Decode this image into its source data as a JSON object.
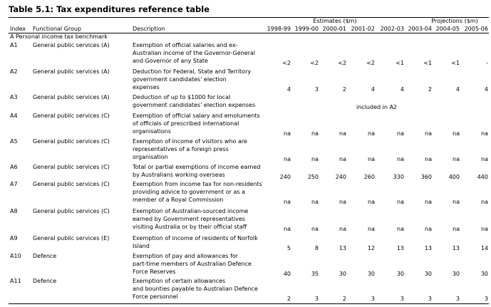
{
  "header": {
    "title": "Table 5.1: Tax expenditures reference table",
    "estimates": "Estimates ($m)",
    "projections": "Projections ($m)"
  },
  "table": {
    "columns": [
      "Index",
      "Functional Group",
      "Description",
      "1998-99",
      "1999-00",
      "2000-01",
      "2001-02",
      "2002-03",
      "2003-04",
      "2004-05",
      "2005-06"
    ],
    "section": "A  Personal income tax benchmark",
    "rows": [
      {
        "index": "A1",
        "group": "General public services (A)",
        "description": [
          "Exemption of official salaries and ex-",
          "Australian income of the Governor-General",
          "and Governor of any State"
        ],
        "values": [
          "<2",
          "<2",
          "<2",
          "<2",
          "<1",
          "<1",
          "<1",
          "-"
        ]
      },
      {
        "index": "A2",
        "group": "General public services (A)",
        "description": [
          "Deduction for Federal, State and Territory",
          "government candidates' election",
          "expenses"
        ],
        "values": [
          4,
          3,
          2,
          4,
          4,
          2,
          4,
          4
        ]
      },
      {
        "index": "A3",
        "group": "General public services (A)",
        "description": [
          "Deduction of up to $1000 for local",
          "government candidates' election expenses"
        ],
        "note": "included in A2"
      },
      {
        "index": "A4",
        "group": "General public services (C)",
        "description": [
          "Exemption of official salary and emoluments",
          "of officials of prescribed international",
          "organisations"
        ],
        "values": [
          "na",
          "na",
          "na",
          "na",
          "na",
          "na",
          "na",
          "na"
        ]
      },
      {
        "index": "A5",
        "group": "General public services (C)",
        "description": [
          "Exemption of income of visitors who are",
          "representatives of a foreign press",
          "organisation"
        ],
        "values": [
          "na",
          "na",
          "na",
          "na",
          "na",
          "na",
          "na",
          "na"
        ]
      },
      {
        "index": "A6",
        "group": "General public services (C)",
        "description": [
          "Total or partial exemptions of income earned",
          "by Australians working overseas"
        ],
        "values": [
          240,
          250,
          240,
          260,
          330,
          360,
          400,
          440
        ]
      },
      {
        "index": "A7",
        "group": "General public services (C)",
        "description": [
          "Exemption from income tax for non-residents",
          "providing advice to government or as a",
          "member of a Royal Commission"
        ],
        "values": [
          "na",
          "na",
          "na",
          "na",
          "na",
          "na",
          "na",
          "na"
        ]
      },
      {
        "index": "A8",
        "group": "General public services (C)",
        "description": [
          "Exemption of Australian-sourced income",
          "earned by Government representatives",
          "visiting Australia or by their official staff"
        ],
        "values": [
          "na",
          "na",
          "na",
          "na",
          "na",
          "na",
          "na",
          "na"
        ]
      },
      {
        "index": "A9",
        "group": "General public services (E)",
        "description": [
          "Exemption of income of residents of Norfolk",
          "Island"
        ],
        "values": [
          5,
          8,
          13,
          12,
          13,
          13,
          13,
          14
        ]
      },
      {
        "index": "A10",
        "group": "Defence",
        "description": [
          "Exemption of pay and allowances for",
          "part-time members of Australian Defence",
          "Force Reserves"
        ],
        "values": [
          40,
          35,
          30,
          30,
          30,
          30,
          30,
          30
        ]
      },
      {
        "index": "A11",
        "group": "Defence",
        "description": [
          "Exemption of certain allowances",
          "and bounties payable to Australian Defence",
          "Force personnel"
        ],
        "values": [
          2,
          3,
          2,
          3,
          3,
          3,
          3,
          3
        ]
      }
    ]
  }
}
